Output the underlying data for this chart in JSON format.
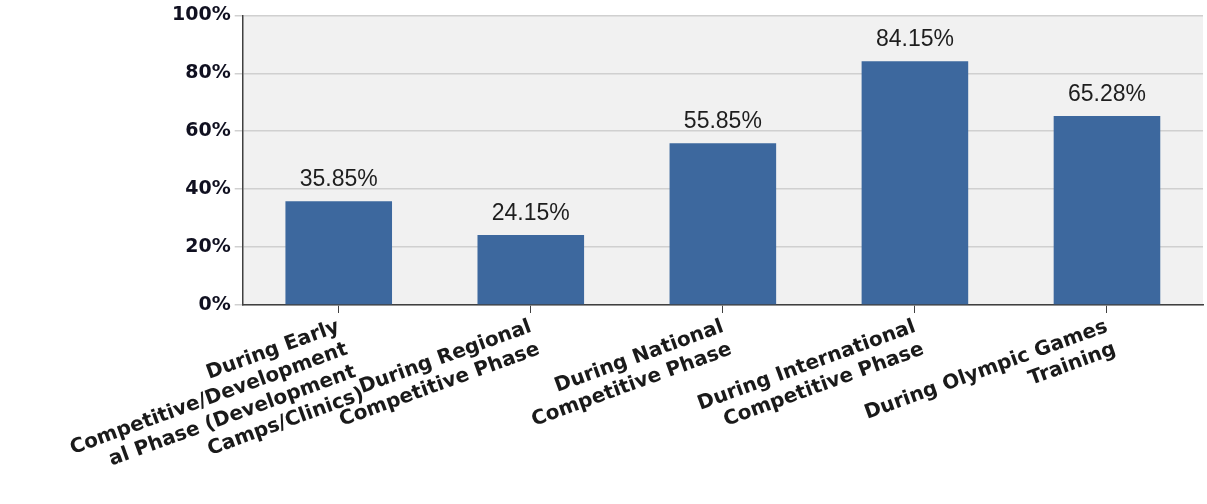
{
  "chart_data": {
    "type": "bar",
    "categories": [
      "During Early\nCompetitive/Development\nal Phase (Development\nCamps/Clinics)",
      "During Regional\nCompetitive Phase",
      "During National\nCompetitive Phase",
      "During International\nCompetitive Phase",
      "During Olympic Games\nTraining"
    ],
    "values": [
      35.85,
      24.15,
      55.85,
      84.15,
      65.28
    ],
    "value_labels": [
      "35.85%",
      "24.15%",
      "55.85%",
      "84.15%",
      "65.28%"
    ],
    "color": "#3d689e",
    "ylim": [
      0,
      100
    ],
    "yticks": [
      {
        "value": 0,
        "label": "0%"
      },
      {
        "value": 20,
        "label": "20%"
      },
      {
        "value": 40,
        "label": "40%"
      },
      {
        "value": 60,
        "label": "60%"
      },
      {
        "value": 80,
        "label": "80%"
      },
      {
        "value": 100,
        "label": "100%"
      }
    ],
    "grid": "y"
  }
}
